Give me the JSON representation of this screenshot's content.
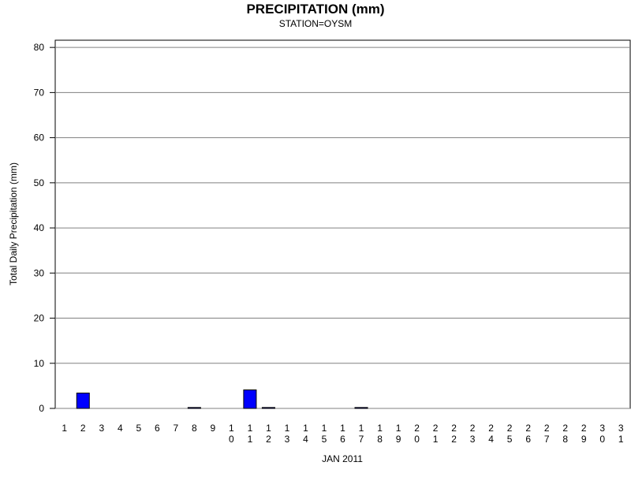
{
  "chart_data": {
    "type": "bar",
    "title": "PRECIPITATION (mm)",
    "subtitle": "STATION=OYSM",
    "x_label": "JAN 2011",
    "y_label": "Total Daily Precipitation (mm)",
    "categories": [
      "1",
      "2",
      "3",
      "4",
      "5",
      "6",
      "7",
      "8",
      "9",
      "10",
      "11",
      "12",
      "13",
      "14",
      "15",
      "16",
      "17",
      "18",
      "19",
      "20",
      "21",
      "22",
      "23",
      "24",
      "25",
      "26",
      "27",
      "28",
      "29",
      "30",
      "31"
    ],
    "values": [
      0,
      3.4,
      0,
      0,
      0,
      0,
      0,
      0.2,
      0,
      0,
      4.1,
      0.2,
      0,
      0,
      0,
      0,
      0.2,
      0,
      0,
      0,
      0,
      0,
      0,
      0,
      0,
      0,
      0,
      0,
      0,
      0,
      0
    ],
    "color": "#0000ff",
    "ylim": [
      0,
      81.6
    ],
    "yticks": [
      0,
      10,
      20,
      30,
      40,
      50,
      60,
      70,
      80
    ],
    "grid": true
  }
}
